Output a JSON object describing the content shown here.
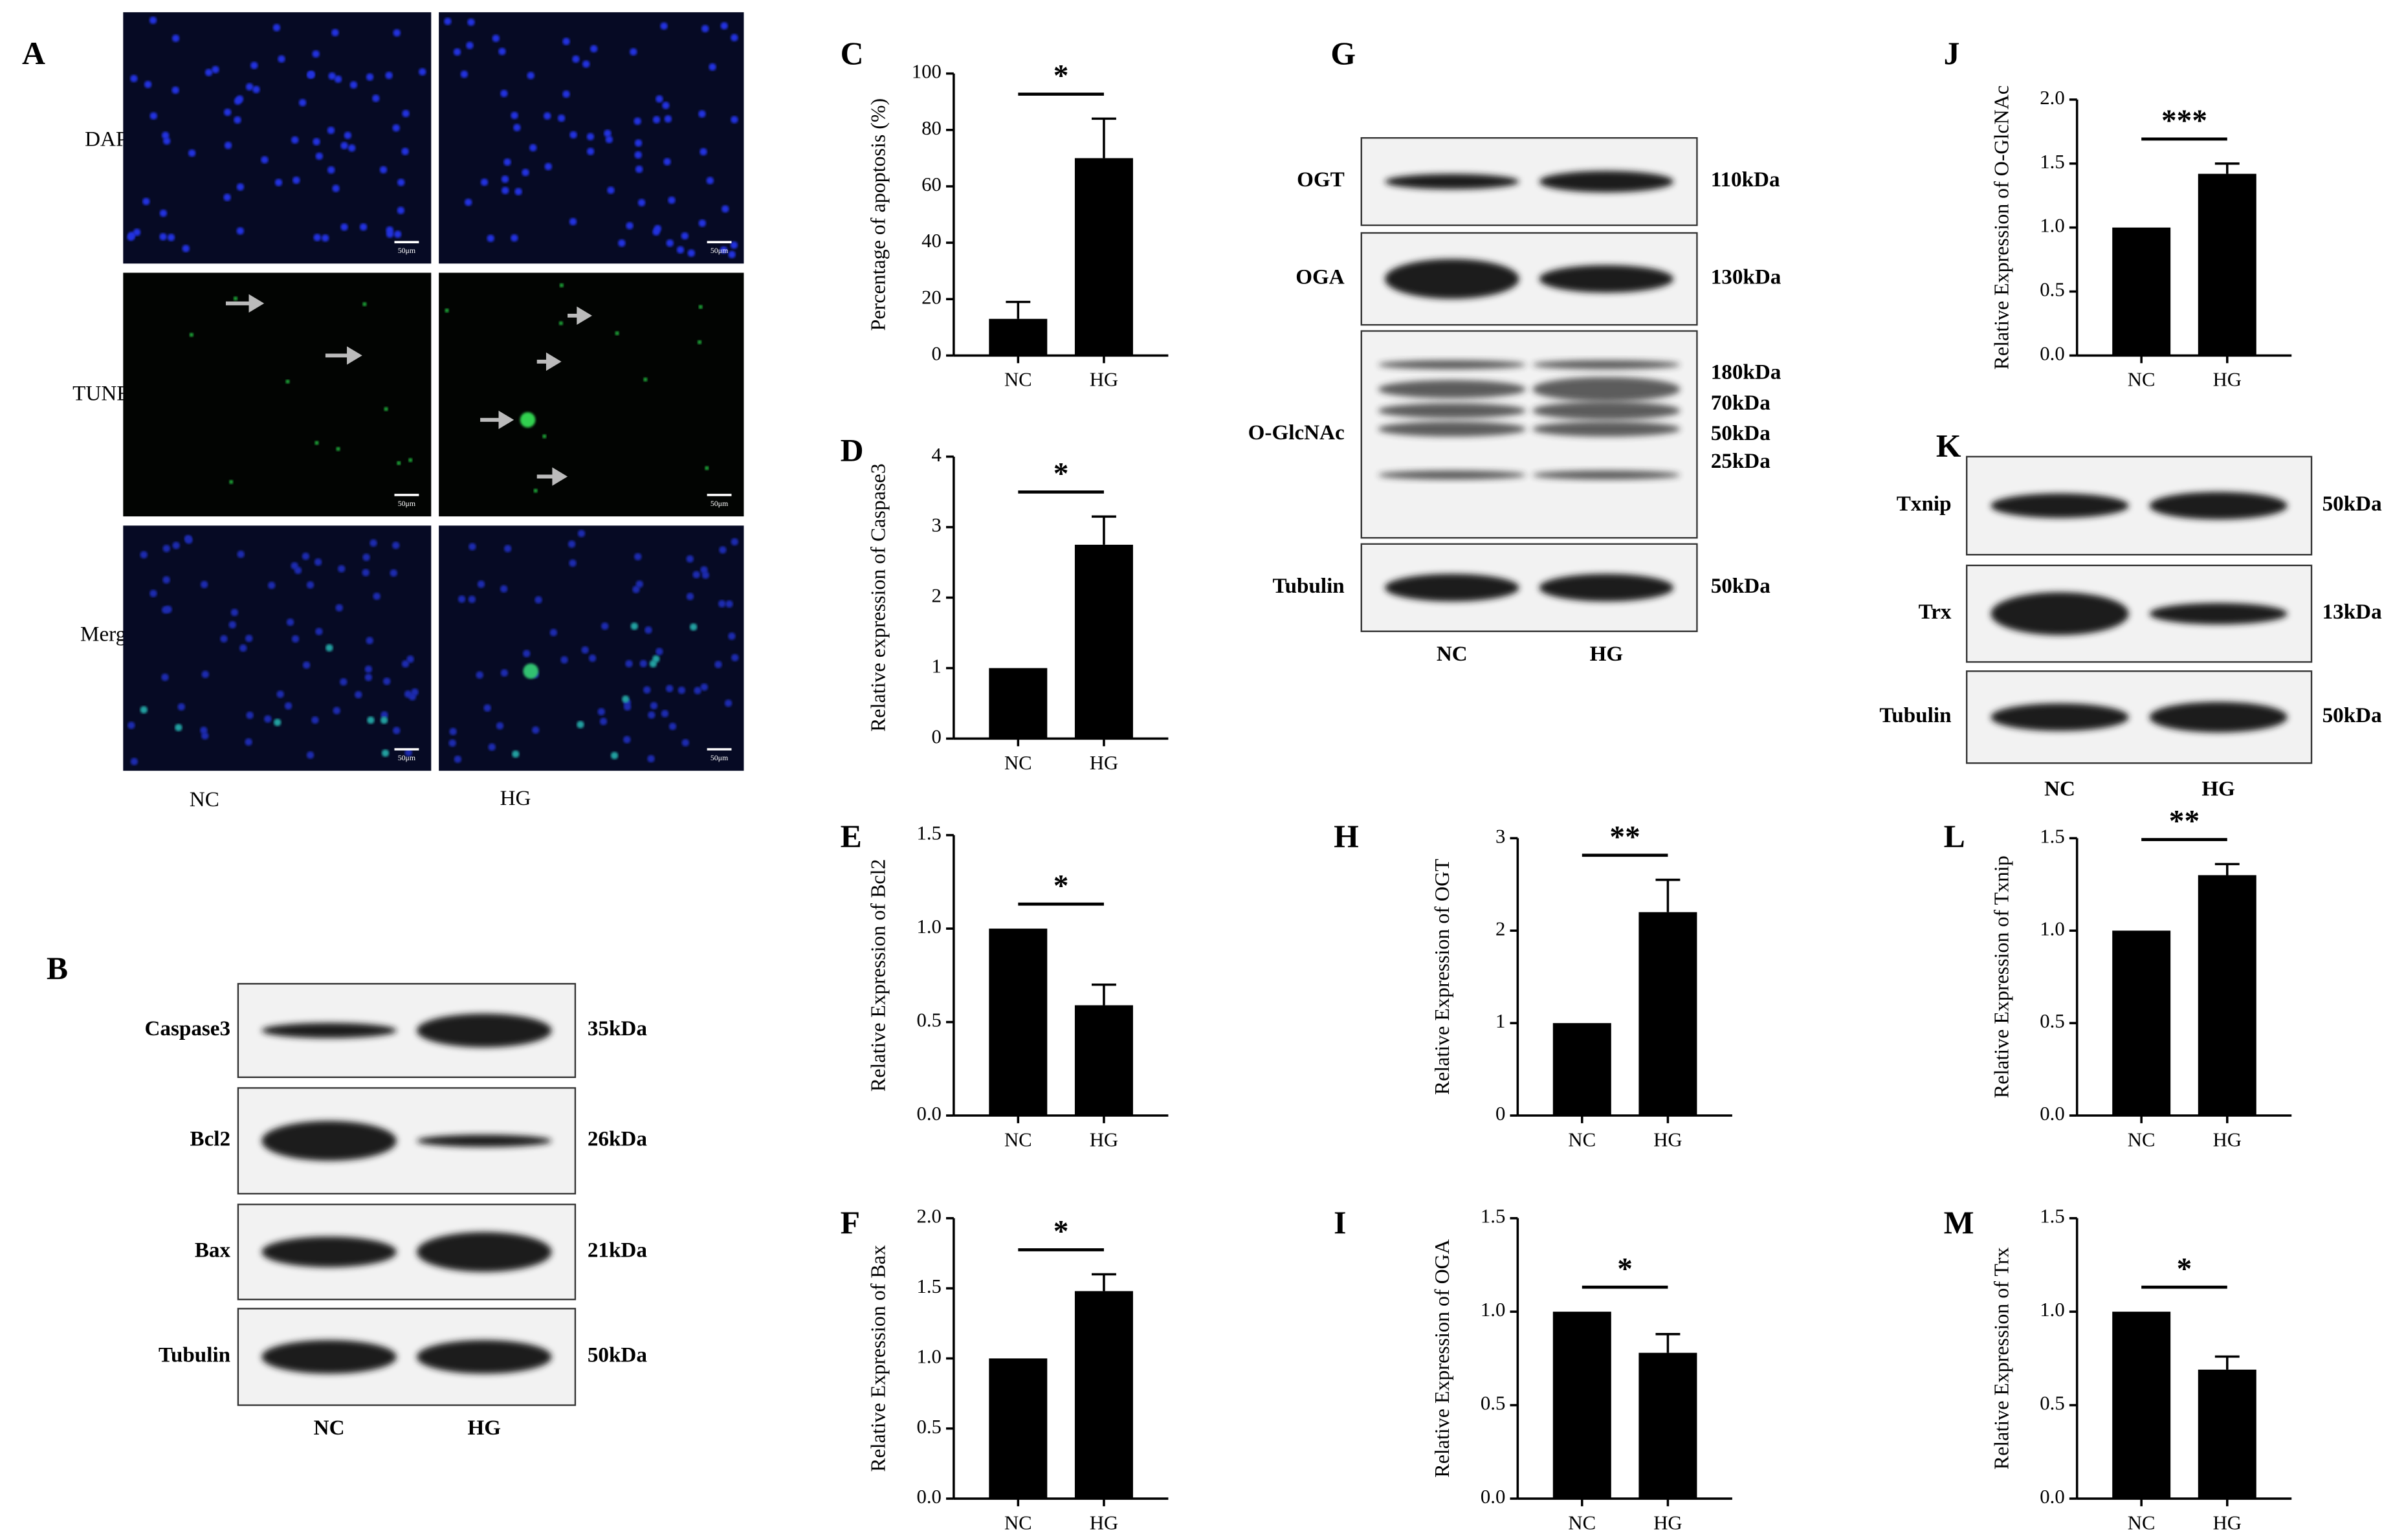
{
  "panel_a": {
    "label": "A",
    "rows": [
      "DAPI",
      "TUNEL",
      "Merge"
    ],
    "columns": [
      "NC",
      "HG"
    ],
    "scale_bar": "50μm"
  },
  "panel_b": {
    "label": "B",
    "columns": [
      "NC",
      "HG"
    ],
    "blots": [
      {
        "protein": "Caspase3",
        "sizes": [
          "35kDa"
        ]
      },
      {
        "protein": "Bcl2",
        "sizes": [
          "26kDa"
        ]
      },
      {
        "protein": "Bax",
        "sizes": [
          "21kDa"
        ]
      },
      {
        "protein": "Tubulin",
        "sizes": [
          "50kDa"
        ]
      }
    ]
  },
  "panel_g": {
    "label": "G",
    "columns": [
      "NC",
      "HG"
    ],
    "blots": [
      {
        "protein": "OGT",
        "sizes": [
          "110kDa"
        ]
      },
      {
        "protein": "OGA",
        "sizes": [
          "130kDa"
        ]
      },
      {
        "protein": "O-GlcNAc",
        "sizes": [
          "180kDa",
          "70kDa",
          "50kDa",
          "25kDa"
        ]
      },
      {
        "protein": "Tubulin",
        "sizes": [
          "50kDa"
        ]
      }
    ]
  },
  "panel_k": {
    "label": "K",
    "columns": [
      "NC",
      "HG"
    ],
    "blots": [
      {
        "protein": "Txnip",
        "sizes": [
          "50kDa"
        ]
      },
      {
        "protein": "Trx",
        "sizes": [
          "13kDa"
        ]
      },
      {
        "protein": "Tubulin",
        "sizes": [
          "50kDa"
        ]
      }
    ]
  },
  "chart_data": [
    {
      "type": "bar",
      "panel": "C",
      "y_label": "Percentage of apoptosis (%)",
      "categories": [
        "NC",
        "HG"
      ],
      "values": [
        13,
        70
      ],
      "errors": [
        6,
        14
      ],
      "significance": "*",
      "color": "#000000",
      "ylim": [
        0,
        100
      ],
      "yticks": [
        0,
        20,
        40,
        60,
        80,
        100
      ]
    },
    {
      "type": "bar",
      "panel": "D",
      "y_label": "Relative expression of Caspase3",
      "categories": [
        "NC",
        "HG"
      ],
      "values": [
        1,
        2.75
      ],
      "errors": [
        null,
        0.4
      ],
      "significance": "*",
      "color": "#000000",
      "ylim": [
        0,
        4
      ],
      "yticks": [
        0,
        1,
        2,
        3,
        4
      ]
    },
    {
      "type": "bar",
      "panel": "E",
      "y_label": "Relative Expression of Bcl2",
      "categories": [
        "NC",
        "HG"
      ],
      "values": [
        1,
        0.59
      ],
      "errors": [
        null,
        0.11
      ],
      "significance": "*",
      "color": "#000000",
      "ylim": [
        0,
        1.5
      ],
      "yticks": [
        {
          "value": 0,
          "label": "0.0"
        },
        0.5,
        {
          "value": 1,
          "label": "1.0"
        },
        1.5
      ]
    },
    {
      "type": "bar",
      "panel": "F",
      "y_label": "Relative Expression of Bax",
      "categories": [
        "NC",
        "HG"
      ],
      "values": [
        1,
        1.48
      ],
      "errors": [
        null,
        0.12
      ],
      "significance": "*",
      "color": "#000000",
      "ylim": [
        0,
        2
      ],
      "yticks": [
        {
          "value": 0,
          "label": "0.0"
        },
        0.5,
        {
          "value": 1,
          "label": "1.0"
        },
        1.5,
        {
          "value": 2,
          "label": "2.0"
        }
      ]
    },
    {
      "type": "bar",
      "panel": "H",
      "y_label": "Relative Expression of OGT",
      "categories": [
        "NC",
        "HG"
      ],
      "values": [
        1,
        2.2
      ],
      "errors": [
        null,
        0.35
      ],
      "significance": "**",
      "color": "#000000",
      "ylim": [
        0,
        3
      ],
      "yticks": [
        0,
        1,
        2,
        3
      ]
    },
    {
      "type": "bar",
      "panel": "I",
      "y_label": "Relative Expression of OGA",
      "categories": [
        "NC",
        "HG"
      ],
      "values": [
        1,
        0.78
      ],
      "errors": [
        null,
        0.1
      ],
      "significance": "*",
      "color": "#000000",
      "ylim": [
        0,
        1.5
      ],
      "yticks": [
        {
          "value": 0,
          "label": "0.0"
        },
        0.5,
        {
          "value": 1,
          "label": "1.0"
        },
        1.5
      ]
    },
    {
      "type": "bar",
      "panel": "J",
      "y_label": "Relative Expression of O-GlcNAc",
      "categories": [
        "NC",
        "HG"
      ],
      "values": [
        1,
        1.42
      ],
      "errors": [
        null,
        0.08
      ],
      "significance": "***",
      "color": "#000000",
      "ylim": [
        0,
        2
      ],
      "yticks": [
        {
          "value": 0,
          "label": "0.0"
        },
        0.5,
        {
          "value": 1,
          "label": "1.0"
        },
        1.5,
        {
          "value": 2,
          "label": "2.0"
        }
      ]
    },
    {
      "type": "bar",
      "panel": "L",
      "y_label": "Relative Expression of Txnip",
      "categories": [
        "NC",
        "HG"
      ],
      "values": [
        1,
        1.3
      ],
      "errors": [
        null,
        0.06
      ],
      "significance": "**",
      "color": "#000000",
      "ylim": [
        0,
        1.5
      ],
      "yticks": [
        {
          "value": 0,
          "label": "0.0"
        },
        0.5,
        {
          "value": 1,
          "label": "1.0"
        },
        1.5
      ]
    },
    {
      "type": "bar",
      "panel": "M",
      "y_label": "Relative Expression of Trx",
      "categories": [
        "NC",
        "HG"
      ],
      "values": [
        1,
        0.69
      ],
      "errors": [
        null,
        0.07
      ],
      "significance": "*",
      "color": "#000000",
      "ylim": [
        0,
        1.5
      ],
      "yticks": [
        {
          "value": 0,
          "label": "0.0"
        },
        0.5,
        {
          "value": 1,
          "label": "1.0"
        },
        1.5
      ]
    }
  ]
}
